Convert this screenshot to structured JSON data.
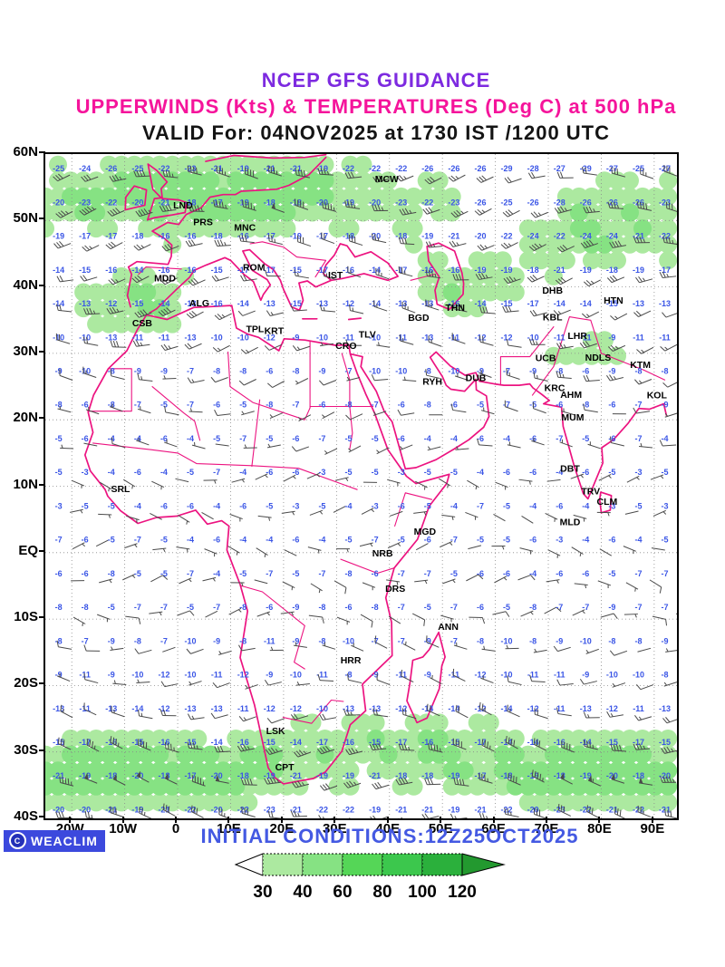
{
  "header": {
    "line1": "NCEP GFS GUIDANCE",
    "line2": "UPPERWINDS (Kts) & TEMPERATURES (Deg C) at 500 hPa",
    "line3": "VALID For: 04NOV2025 at 1730 IST /1200 UTC"
  },
  "colors": {
    "title1": "#7d2ae0",
    "title2": "#f5149b",
    "coastline": "#ec1380",
    "temperature_text": "#3a55e6",
    "wind_barb": "#4a4a4a",
    "graticule": "#8a8a8a",
    "station_text": "#000000",
    "initial_conditions_text": "#4459e2",
    "weaclim_bg": "#3c49dd",
    "shading_levels": [
      "#ace9a0",
      "#86e283",
      "#55d657",
      "#3cc74d",
      "#2bb03c"
    ],
    "shading_over": "#23992f"
  },
  "map": {
    "lon_min": -25,
    "lon_max": 94.3,
    "lat_min": -40,
    "lat_max": 60,
    "y_ticks": [
      {
        "label": "60N",
        "lat": 60
      },
      {
        "label": "50N",
        "lat": 50
      },
      {
        "label": "40N",
        "lat": 40
      },
      {
        "label": "30N",
        "lat": 30
      },
      {
        "label": "20N",
        "lat": 20
      },
      {
        "label": "10N",
        "lat": 10
      },
      {
        "label": "EQ",
        "lat": 0
      },
      {
        "label": "10S",
        "lat": -10
      },
      {
        "label": "20S",
        "lat": -20
      },
      {
        "label": "30S",
        "lat": -30
      },
      {
        "label": "40S",
        "lat": -40
      }
    ],
    "x_ticks": [
      {
        "label": "20W",
        "lon": -20
      },
      {
        "label": "10W",
        "lon": -10
      },
      {
        "label": "0",
        "lon": 0
      },
      {
        "label": "10E",
        "lon": 10
      },
      {
        "label": "20E",
        "lon": 20
      },
      {
        "label": "30E",
        "lon": 30
      },
      {
        "label": "40E",
        "lon": 40
      },
      {
        "label": "50E",
        "lon": 50
      },
      {
        "label": "60E",
        "lon": 60
      },
      {
        "label": "70E",
        "lon": 70
      },
      {
        "label": "80E",
        "lon": 80
      },
      {
        "label": "90E",
        "lon": 90
      }
    ],
    "stations": [
      {
        "code": "MCW",
        "lon": 39.5,
        "lat": 55.8
      },
      {
        "code": "LND",
        "lon": 1.0,
        "lat": 51.8
      },
      {
        "code": "PRS",
        "lon": 4.8,
        "lat": 49.3
      },
      {
        "code": "MNC",
        "lon": 12.7,
        "lat": 48.5
      },
      {
        "code": "ROM",
        "lon": 14.4,
        "lat": 42.5
      },
      {
        "code": "MDD",
        "lon": -2.4,
        "lat": 40.8
      },
      {
        "code": "IST",
        "lon": 29.8,
        "lat": 41.3
      },
      {
        "code": "ALG",
        "lon": 4.1,
        "lat": 37.1
      },
      {
        "code": "CSB",
        "lon": -6.7,
        "lat": 34.1
      },
      {
        "code": "TPL",
        "lon": 14.6,
        "lat": 33.2
      },
      {
        "code": "KRT",
        "lon": 18.2,
        "lat": 32.9
      },
      {
        "code": "TLV",
        "lon": 35.8,
        "lat": 32.4
      },
      {
        "code": "CRO",
        "lon": 31.8,
        "lat": 30.7
      },
      {
        "code": "BGD",
        "lon": 45.5,
        "lat": 34.9
      },
      {
        "code": "THN",
        "lon": 52.4,
        "lat": 36.4
      },
      {
        "code": "DHB",
        "lon": 70.8,
        "lat": 39.0
      },
      {
        "code": "HTN",
        "lon": 82.3,
        "lat": 37.5
      },
      {
        "code": "KBL",
        "lon": 70.8,
        "lat": 35.0
      },
      {
        "code": "LHR",
        "lon": 75.5,
        "lat": 32.2
      },
      {
        "code": "UCB",
        "lon": 69.5,
        "lat": 28.8
      },
      {
        "code": "NDLS",
        "lon": 79.4,
        "lat": 28.9
      },
      {
        "code": "KTM",
        "lon": 87.4,
        "lat": 27.8
      },
      {
        "code": "RYH",
        "lon": 48.1,
        "lat": 25.3
      },
      {
        "code": "DUB",
        "lon": 56.3,
        "lat": 25.8
      },
      {
        "code": "KRC",
        "lon": 71.2,
        "lat": 24.3
      },
      {
        "code": "AHM",
        "lon": 74.3,
        "lat": 23.3
      },
      {
        "code": "MUM",
        "lon": 74.6,
        "lat": 19.9
      },
      {
        "code": "KOL",
        "lon": 90.5,
        "lat": 23.2
      },
      {
        "code": "SRL",
        "lon": -10.8,
        "lat": 9.1
      },
      {
        "code": "DBT",
        "lon": 74.1,
        "lat": 12.2
      },
      {
        "code": "TRV",
        "lon": 78.0,
        "lat": 8.8
      },
      {
        "code": "CLM",
        "lon": 81.1,
        "lat": 7.2
      },
      {
        "code": "MLD",
        "lon": 74.1,
        "lat": 4.1
      },
      {
        "code": "MGD",
        "lon": 46.7,
        "lat": 2.7
      },
      {
        "code": "NRB",
        "lon": 38.7,
        "lat": -0.6
      },
      {
        "code": "DRS",
        "lon": 41.1,
        "lat": -5.9
      },
      {
        "code": "ANN",
        "lon": 51.1,
        "lat": -11.6
      },
      {
        "code": "HRR",
        "lon": 32.7,
        "lat": -16.7
      },
      {
        "code": "LSK",
        "lon": 18.5,
        "lat": -27.3
      },
      {
        "code": "CPT",
        "lon": 20.2,
        "lat": -32.8
      }
    ]
  },
  "wind_field": {
    "grid_cols": 24,
    "grid_rows": 20,
    "units_wind": "Kts",
    "units_temp": "Deg C",
    "level": "500 hPa"
  },
  "footer": {
    "logo_text": "WEACLIM",
    "logo_icon": "copyright-circle-icon",
    "initial_conditions": "INITIAL CONDITIONS:12Z25OCT2025",
    "legend": {
      "values": [
        "30",
        "40",
        "60",
        "80",
        "100",
        "120"
      ],
      "colors": [
        "#ace9a0",
        "#86e283",
        "#55d657",
        "#3cc74d",
        "#2bb03c"
      ],
      "over_color": "#23992f",
      "under_color": "#ffffff"
    }
  }
}
